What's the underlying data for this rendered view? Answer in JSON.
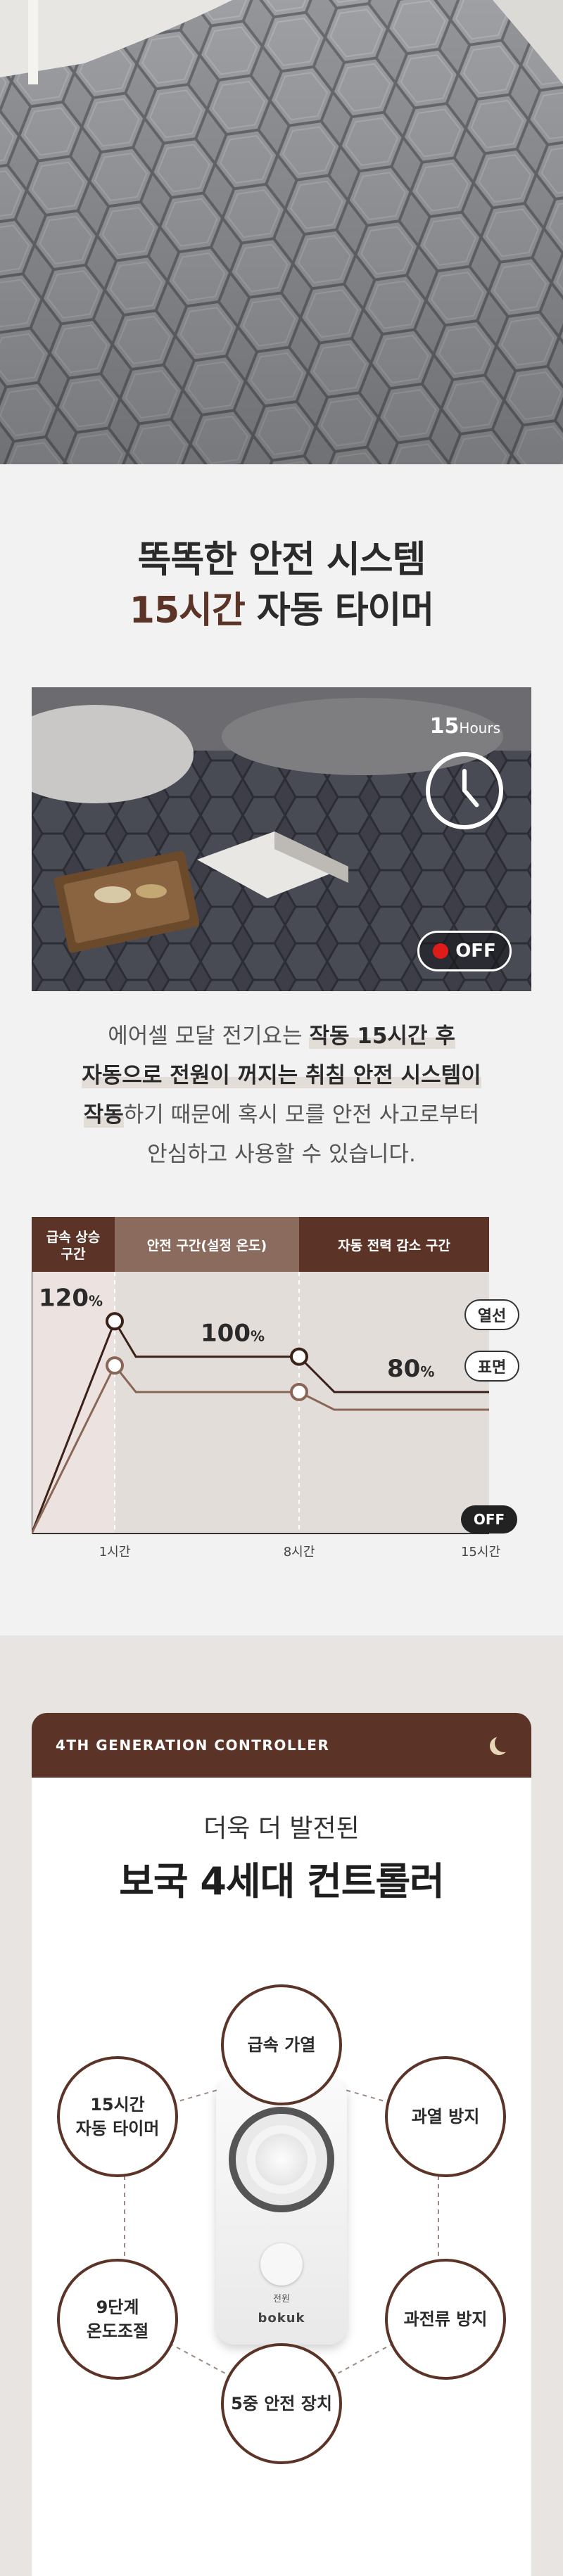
{
  "hero": {
    "image": "grey-quilted-mattress-pad-photo"
  },
  "safety": {
    "title_line1": "똑똑한 안전 시스템",
    "title_line2_accent": "15시간",
    "title_line2_rest": " 자동 타이머",
    "photo": {
      "hours_num": "15",
      "hours_unit": "Hours",
      "off_label": "OFF"
    },
    "desc": {
      "l1_a": "에어셀 모달 전기요는 ",
      "l1_b": "작동 15시간 후",
      "l2": "자동으로 전원이 꺼지는 취침 안전 시스템이",
      "l3_a": "작동",
      "l3_b": "하기 때문에 혹시 모를 안전 사고로부터",
      "l4": "안심하고 사용할 수 있습니다."
    }
  },
  "chart_data": {
    "type": "line",
    "zones": [
      "급속 상승\n구간",
      "안전 구간(설정 온도)",
      "자동 전력 감소 구간"
    ],
    "x": [
      "0",
      "1시간",
      "8시간",
      "15시간"
    ],
    "series": [
      {
        "name": "열선",
        "values": [
          0,
          120,
          100,
          80
        ]
      },
      {
        "name": "표면",
        "values": [
          0,
          95,
          80,
          70
        ]
      }
    ],
    "annotations": [
      "120%",
      "100%",
      "80%"
    ],
    "end_label": "OFF",
    "colors": {
      "zone_dark": "#5b3427",
      "zone_light": "#8a6b5e",
      "line_top": "#3b2219",
      "line_bottom": "#8a6656",
      "bg_left": "#ece3e0",
      "bg_right": "#e3ddd9"
    }
  },
  "controller": {
    "header_label": "4TH GENERATION CONTROLLER",
    "subtitle": "더욱 더 발전된",
    "title": "보국 4세대 컨트롤러",
    "features": [
      "급속 가열",
      "15시간\n자동 타이머",
      "과열 방지",
      "9단계\n온도조절",
      "과전류 방지",
      "5중 안전 장치"
    ],
    "device_power_label": "전원",
    "device_brand": "bokuk"
  },
  "colors": {
    "brand": "#5b3427",
    "bg": "#f2f2f2"
  }
}
